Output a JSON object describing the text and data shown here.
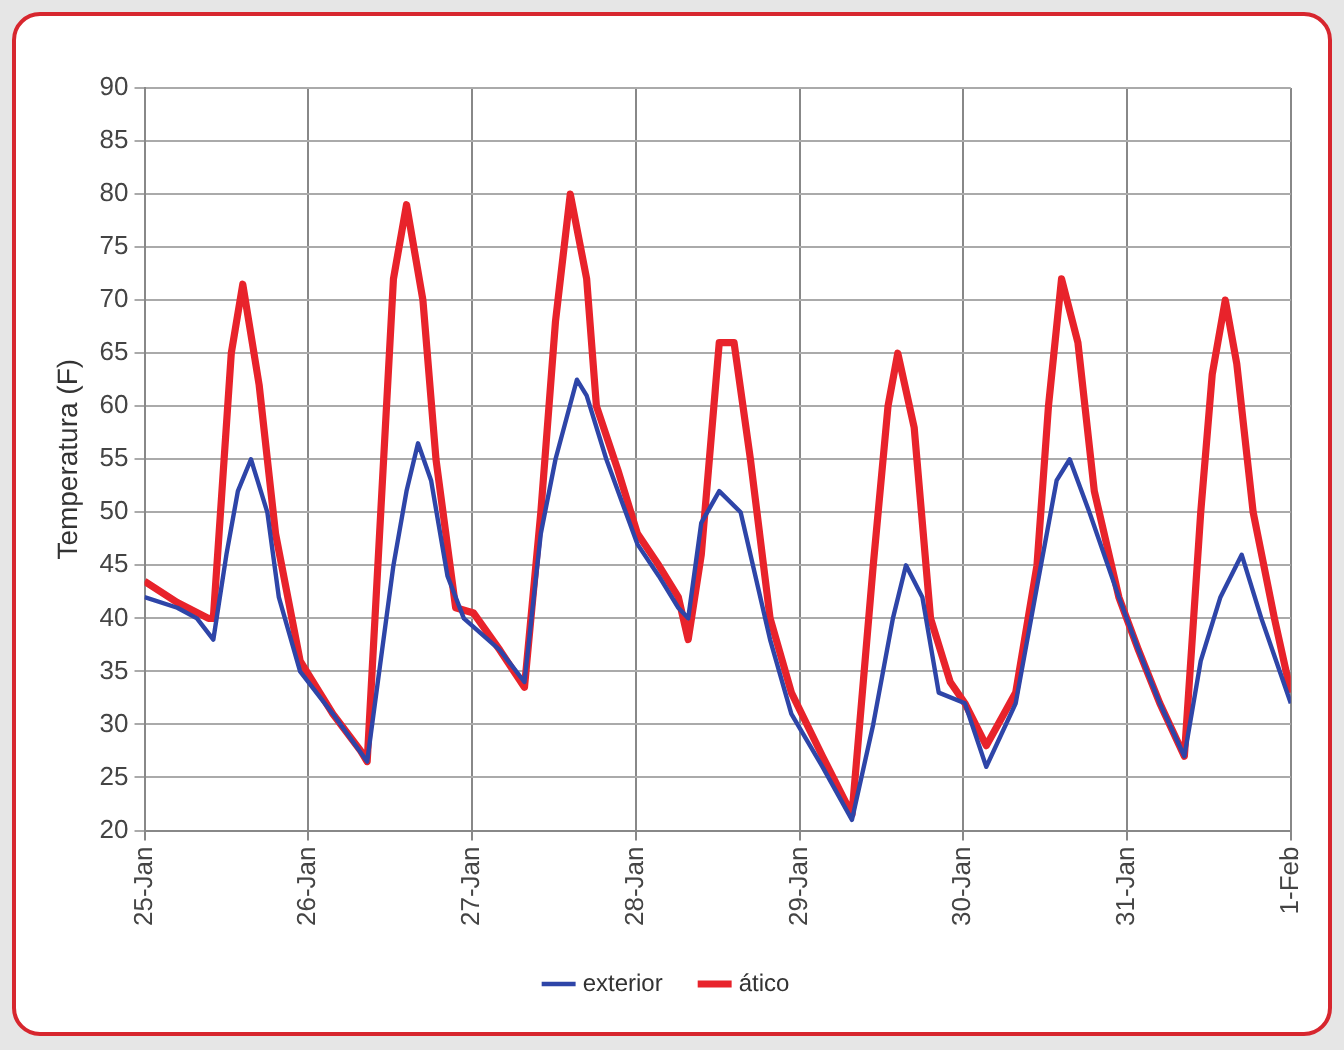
{
  "chart_data": {
    "type": "line",
    "ylabel": "Temperatura (F)",
    "xlim": [
      "--01-25",
      "--02-01"
    ],
    "xticks": [
      {
        "value": "--01-25",
        "label": "25-Jan"
      },
      {
        "value": "--01-26",
        "label": "26-Jan"
      },
      {
        "value": "--01-27",
        "label": "27-Jan"
      },
      {
        "value": "--01-28",
        "label": "28-Jan"
      },
      {
        "value": "--01-29",
        "label": "29-Jan"
      },
      {
        "value": "--01-30",
        "label": "30-Jan"
      },
      {
        "value": "--01-31",
        "label": "31-Jan"
      },
      {
        "value": "--02-01",
        "label": "1-Feb"
      }
    ],
    "ylim": [
      20,
      90
    ],
    "yticks": [
      20,
      25,
      30,
      35,
      40,
      45,
      50,
      55,
      60,
      65,
      70,
      75,
      80,
      85,
      90
    ],
    "grid": true,
    "legend": "bottom",
    "marker": "none",
    "line_style": "solid",
    "series": [
      {
        "name": "ático",
        "color": "#e8232b",
        "x": [
          "--01-25T00:00",
          "--01-25T04:48",
          "--01-25T09:22",
          "--01-25T10:05",
          "--01-25T12:43",
          "--01-25T14:24",
          "--01-25T16:48",
          "--01-25T19:12",
          "--01-25T22:48",
          "--01-26T03:36",
          "--01-26T07:41",
          "--01-26T08:38",
          "--01-26T12:29",
          "--01-26T14:24",
          "--01-26T16:48",
          "--01-26T18:43",
          "--01-26T21:36",
          "--01-27T00:14",
          "--01-27T04:05",
          "--01-27T07:41",
          "--01-27T10:05",
          "--01-27T12:14",
          "--01-27T14:24",
          "--01-27T16:48",
          "--01-27T18:14",
          "--01-27T21:22",
          "--01-28T00:14",
          "--01-28T03:22",
          "--01-28T06:14",
          "--01-28T07:41",
          "--01-28T09:36",
          "--01-28T12:14",
          "--01-28T14:24",
          "--01-28T16:48",
          "--01-28T19:41",
          "--01-28T22:48",
          "--01-29T03:22",
          "--01-29T07:41",
          "--01-29T10:48",
          "--01-29T12:58",
          "--01-29T14:24",
          "--01-29T16:48",
          "--01-29T19:12",
          "--01-29T22:05",
          "--01-30T00:14",
          "--01-30T03:22",
          "--01-30T07:41",
          "--01-30T10:48",
          "--01-30T12:29",
          "--01-30T14:24",
          "--01-30T16:48",
          "--01-30T19:12",
          "--01-30T22:48",
          "--01-31T01:41",
          "--01-31T04:48",
          "--01-31T08:24",
          "--01-31T10:48",
          "--01-31T12:29",
          "--01-31T14:24",
          "--01-31T16:05",
          "--01-31T18:29",
          "--01-31T21:36",
          "--02-01T00:00"
        ],
        "values": [
          43.5,
          41.5,
          40,
          40,
          65,
          71.5,
          62,
          48,
          36,
          31,
          27.5,
          26.5,
          72,
          79,
          70,
          55,
          41,
          40.5,
          37,
          33.5,
          50,
          68,
          80,
          72,
          60,
          54,
          48,
          45,
          42,
          38,
          46,
          66,
          66,
          55,
          40,
          33,
          27,
          21.5,
          45,
          60,
          65,
          58,
          40,
          34,
          32,
          28,
          33,
          45,
          60,
          72,
          66,
          52,
          42,
          37,
          32,
          27,
          50,
          63,
          70,
          64,
          50,
          40,
          33
        ]
      },
      {
        "name": "exterior",
        "color": "#2e45a8",
        "x": [
          "--01-25T00:00",
          "--01-25T04:48",
          "--01-25T07:41",
          "--01-25T10:05",
          "--01-25T12:00",
          "--01-25T13:41",
          "--01-25T15:36",
          "--01-25T18:00",
          "--01-25T19:41",
          "--01-25T22:48",
          "--01-26T03:36",
          "--01-26T08:38",
          "--01-26T12:29",
          "--01-26T14:24",
          "--01-26T16:05",
          "--01-26T18:00",
          "--01-26T20:24",
          "--01-26T22:48",
          "--01-27T04:05",
          "--01-27T07:41",
          "--01-27T10:05",
          "--01-27T12:14",
          "--01-27T15:22",
          "--01-27T16:48",
          "--01-27T19:41",
          "--01-28T00:14",
          "--01-28T03:22",
          "--01-28T06:14",
          "--01-28T07:41",
          "--01-28T09:36",
          "--01-28T12:14",
          "--01-28T15:22",
          "--01-28T19:41",
          "--01-28T22:48",
          "--01-29T03:22",
          "--01-29T07:41",
          "--01-29T10:48",
          "--01-29T13:41",
          "--01-29T15:36",
          "--01-29T18:00",
          "--01-29T20:24",
          "--01-30T00:14",
          "--01-30T03:22",
          "--01-30T07:41",
          "--01-30T10:48",
          "--01-30T13:41",
          "--01-30T15:36",
          "--01-30T18:29",
          "--01-30T22:48",
          "--01-31T01:41",
          "--01-31T04:48",
          "--01-31T08:24",
          "--01-31T10:48",
          "--01-31T13:41",
          "--01-31T16:48",
          "--01-31T19:41",
          "--02-01T00:00"
        ],
        "values": [
          42,
          41,
          40,
          38,
          46,
          52,
          55,
          50,
          42,
          35,
          31,
          26.5,
          45,
          52,
          56.5,
          53,
          44,
          40,
          37,
          34,
          48,
          55,
          62.5,
          61,
          55,
          47,
          44,
          41,
          40,
          49,
          52,
          50,
          38,
          31,
          26,
          21,
          30,
          40,
          45,
          42,
          33,
          32,
          26,
          32,
          43,
          53,
          55,
          50,
          42,
          37,
          32,
          27,
          36,
          42,
          46,
          40,
          32
        ]
      }
    ]
  }
}
